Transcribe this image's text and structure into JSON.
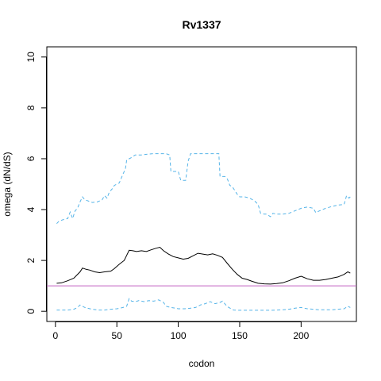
{
  "chart_data": {
    "type": "line",
    "title": "Rv1337",
    "xlabel": "codon",
    "ylabel": "omega (dN/dS)",
    "xlim": [
      -7,
      245
    ],
    "ylim": [
      -0.4,
      10.4
    ],
    "x_ticks": [
      0,
      50,
      100,
      150,
      200
    ],
    "y_ticks": [
      0,
      2,
      4,
      6,
      8,
      10
    ],
    "grid": false,
    "reference_line": {
      "y": 1,
      "color": "#c060c0"
    },
    "series": [
      {
        "style": "solid",
        "color": "#000000",
        "x": [
          1,
          5,
          10,
          15,
          20,
          22,
          25,
          28,
          32,
          36,
          40,
          45,
          48,
          52,
          56,
          58,
          60,
          63,
          66,
          70,
          74,
          78,
          82,
          85,
          88,
          92,
          96,
          100,
          104,
          108,
          112,
          116,
          120,
          124,
          128,
          132,
          136,
          140,
          144,
          148,
          152,
          156,
          160,
          165,
          170,
          175,
          180,
          185,
          190,
          195,
          200,
          205,
          210,
          215,
          220,
          225,
          230,
          235,
          238,
          240
        ],
        "y": [
          1.1,
          1.12,
          1.2,
          1.3,
          1.55,
          1.7,
          1.65,
          1.62,
          1.55,
          1.52,
          1.55,
          1.58,
          1.68,
          1.85,
          2.0,
          2.2,
          2.4,
          2.38,
          2.35,
          2.38,
          2.35,
          2.42,
          2.48,
          2.52,
          2.38,
          2.25,
          2.15,
          2.1,
          2.05,
          2.08,
          2.18,
          2.28,
          2.25,
          2.22,
          2.26,
          2.2,
          2.12,
          1.88,
          1.65,
          1.45,
          1.3,
          1.25,
          1.18,
          1.1,
          1.08,
          1.07,
          1.09,
          1.12,
          1.2,
          1.3,
          1.38,
          1.28,
          1.22,
          1.22,
          1.25,
          1.3,
          1.35,
          1.45,
          1.55,
          1.5
        ]
      },
      {
        "style": "dashed",
        "color": "#55b4e8",
        "x": [
          1,
          3,
          6,
          10,
          12,
          14,
          16,
          18,
          20,
          22,
          24,
          26,
          30,
          34,
          38,
          40,
          42,
          44,
          46,
          48,
          50,
          52,
          55,
          57,
          58,
          60,
          62,
          65,
          68,
          70,
          75,
          80,
          85,
          90,
          93,
          94,
          98,
          100,
          102,
          104,
          106,
          108,
          110,
          112,
          115,
          120,
          125,
          130,
          133,
          134,
          138,
          140,
          142,
          144,
          146,
          148,
          150,
          154,
          158,
          162,
          165,
          167,
          170,
          172,
          175,
          177,
          180,
          185,
          190,
          195,
          200,
          205,
          210,
          212,
          215,
          220,
          225,
          230,
          235,
          237,
          239,
          240
        ],
        "y": [
          3.45,
          3.55,
          3.6,
          3.65,
          3.9,
          3.65,
          3.95,
          4.05,
          4.3,
          4.5,
          4.38,
          4.35,
          4.28,
          4.3,
          4.38,
          4.55,
          4.45,
          4.7,
          4.8,
          4.95,
          5.0,
          5.05,
          5.4,
          5.6,
          5.95,
          6.0,
          6.05,
          6.15,
          6.15,
          6.15,
          6.18,
          6.2,
          6.2,
          6.2,
          6.15,
          5.5,
          5.5,
          5.5,
          5.15,
          5.15,
          5.15,
          5.9,
          6.2,
          6.2,
          6.2,
          6.2,
          6.2,
          6.2,
          6.2,
          5.3,
          5.3,
          5.2,
          4.95,
          4.9,
          4.75,
          4.6,
          4.5,
          4.5,
          4.45,
          4.35,
          4.2,
          3.85,
          3.82,
          3.82,
          3.72,
          3.85,
          3.82,
          3.82,
          3.85,
          3.95,
          4.05,
          4.1,
          4.05,
          3.88,
          3.95,
          4.05,
          4.12,
          4.18,
          4.2,
          4.55,
          4.45,
          4.5
        ]
      },
      {
        "style": "dashed",
        "color": "#55b4e8",
        "x": [
          1,
          5,
          10,
          15,
          18,
          20,
          22,
          24,
          26,
          30,
          35,
          40,
          45,
          50,
          55,
          58,
          60,
          62,
          65,
          68,
          72,
          76,
          80,
          84,
          88,
          90,
          94,
          98,
          100,
          105,
          110,
          114,
          118,
          122,
          126,
          130,
          134,
          136,
          140,
          145,
          150,
          155,
          160,
          165,
          170,
          175,
          180,
          185,
          190,
          195,
          200,
          205,
          210,
          215,
          220,
          225,
          230,
          235,
          238,
          240
        ],
        "y": [
          0.05,
          0.05,
          0.05,
          0.08,
          0.15,
          0.25,
          0.2,
          0.15,
          0.12,
          0.08,
          0.05,
          0.05,
          0.08,
          0.1,
          0.15,
          0.2,
          0.5,
          0.4,
          0.38,
          0.42,
          0.38,
          0.42,
          0.4,
          0.45,
          0.35,
          0.2,
          0.15,
          0.12,
          0.1,
          0.1,
          0.12,
          0.15,
          0.25,
          0.3,
          0.38,
          0.3,
          0.35,
          0.4,
          0.18,
          0.05,
          0.04,
          0.04,
          0.04,
          0.04,
          0.04,
          0.04,
          0.05,
          0.06,
          0.08,
          0.12,
          0.15,
          0.1,
          0.08,
          0.06,
          0.06,
          0.06,
          0.08,
          0.1,
          0.2,
          0.15
        ]
      }
    ]
  }
}
